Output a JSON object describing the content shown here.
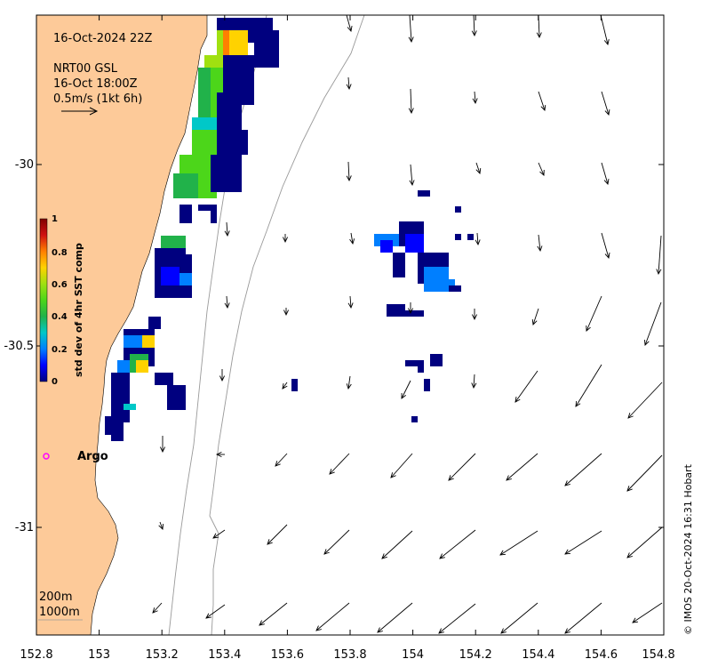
{
  "header": {
    "datetime": "16-Oct-2024 22Z",
    "product": "NRT00 GSL",
    "current_time": "16-Oct 18:00Z",
    "scale_label": "0.5m/s (1kt 6h)"
  },
  "colorbar": {
    "title": "std dev of 4hr SST comp",
    "ticks": [
      "1",
      "0.8",
      "0.6",
      "0.4",
      "0.2",
      "0"
    ],
    "range": [
      0,
      1
    ],
    "colors": [
      "#00007f",
      "#0000ff",
      "#007fff",
      "#00c8c8",
      "#21b24a",
      "#4cd61a",
      "#a0e010",
      "#ffd200",
      "#ff7f00",
      "#d01010",
      "#7f0000"
    ]
  },
  "axes": {
    "x_ticks": [
      "152.8",
      "153",
      "153.2",
      "153.4",
      "153.6",
      "153.8",
      "154",
      "154.2",
      "154.4",
      "154.6",
      "154.8"
    ],
    "y_ticks": [
      "-30",
      "-30.5",
      "-31"
    ],
    "xlim": [
      152.8,
      154.8
    ],
    "ylim": [
      -31.3,
      -29.57
    ]
  },
  "isobaths": {
    "labels": [
      "200m",
      "1000m"
    ]
  },
  "argo": {
    "label": "Argo",
    "lon": 152.83,
    "lat": -30.81,
    "color": "#ff00ff"
  },
  "credit": "© IMOS 20-Oct-2024 16:31 Hobart",
  "colors": {
    "land": "#fdca99",
    "isobath": "#999999",
    "arrow": "#000000"
  }
}
